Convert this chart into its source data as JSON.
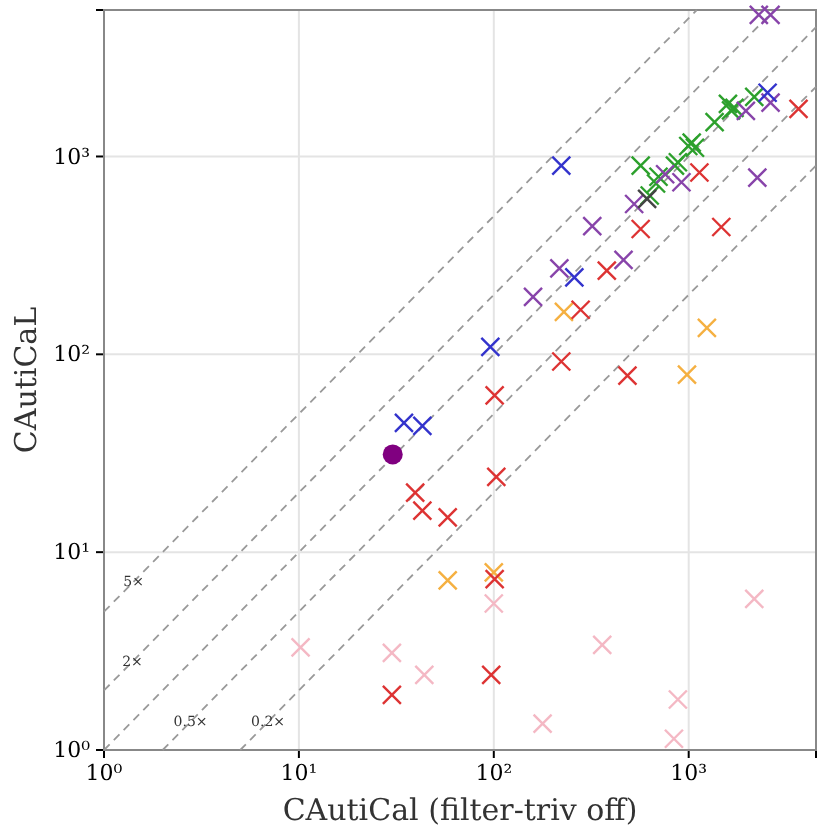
{
  "chart_data": {
    "type": "scatter",
    "xlabel": "CAutiCal (filter-triv off)",
    "ylabel": "CAutiCaL",
    "log": "xy",
    "grid": true,
    "marker": "cross",
    "xlim": [
      1,
      4500
    ],
    "ylim": [
      1,
      5500
    ],
    "xticks": [
      {
        "value": 1,
        "label": "10⁰"
      },
      {
        "value": 10,
        "label": "10¹"
      },
      {
        "value": 100,
        "label": "10²"
      },
      {
        "value": 1000,
        "label": "10³"
      }
    ],
    "yticks": [
      {
        "value": 1,
        "label": "10⁰"
      },
      {
        "value": 10,
        "label": "10¹"
      },
      {
        "value": 100,
        "label": "10²"
      },
      {
        "value": 1000,
        "label": "10³"
      }
    ],
    "series": [
      {
        "type": "line",
        "color": "#999999",
        "line_style": "dashed",
        "marker": "none",
        "x": [
          1,
          1100
        ],
        "values": [
          5,
          5500
        ]
      },
      {
        "type": "line",
        "color": "#999999",
        "line_style": "dashed",
        "marker": "none",
        "x": [
          1,
          2750
        ],
        "values": [
          2,
          5500
        ]
      },
      {
        "type": "line",
        "color": "#999999",
        "line_style": "dashed",
        "marker": "none",
        "x": [
          1,
          4500
        ],
        "values": [
          1,
          4500
        ]
      },
      {
        "type": "line",
        "color": "#999999",
        "line_style": "dashed",
        "marker": "none",
        "x": [
          2,
          4500
        ],
        "values": [
          1,
          2250
        ]
      },
      {
        "type": "line",
        "color": "#999999",
        "line_style": "dashed",
        "marker": "none",
        "x": [
          5,
          4500
        ],
        "values": [
          1,
          900
        ]
      },
      {
        "color": "#f4b8c4",
        "x": [
          10.2,
          30,
          44,
          100,
          360,
          2170,
          880,
          178,
          840
        ],
        "values": [
          3.3,
          3.1,
          2.4,
          5.5,
          3.4,
          5.8,
          1.8,
          1.36,
          1.14
        ]
      },
      {
        "color": "#f5b041",
        "x": [
          229,
          1240,
          980,
          58,
          100
        ],
        "values": [
          164,
          136,
          79,
          7.2,
          7.9
        ]
      },
      {
        "color": "#dd3333",
        "x": [
          3660,
          1135,
          1470,
          567,
          380,
          279,
          222,
          485,
          101,
          103,
          39.5,
          43,
          58,
          101,
          97,
          30
        ],
        "values": [
          1740,
          830,
          440,
          430,
          265,
          168,
          92,
          78,
          62,
          24,
          20,
          16.2,
          15,
          7.3,
          2.4,
          1.9
        ]
      },
      {
        "color": "#2ca02c",
        "x": [
          567,
          700,
          680,
          850,
          880,
          995,
          1077,
          1036,
          631,
          1358,
          1590,
          1718,
          1650,
          2170
        ],
        "values": [
          900,
          790,
          730,
          900,
          935,
          1130,
          1107,
          1176,
          635,
          1490,
          1845,
          1760,
          1710,
          2000
        ]
      },
      {
        "color": "#8844aa",
        "x": [
          2290,
          2630,
          2630,
          1965,
          2250,
          918,
          757,
          525,
          320,
          463,
          217,
          159
        ],
        "values": [
          5200,
          5200,
          1870,
          1700,
          782,
          741,
          813,
          575,
          445,
          300,
          272,
          195
        ]
      },
      {
        "color": "#3333cc",
        "x": [
          222,
          96,
          259,
          2540,
          34.6,
          43
        ],
        "values": [
          900,
          109,
          245,
          2100,
          45,
          43.5
        ]
      },
      {
        "color": "#444444",
        "x": [
          612
        ],
        "values": [
          611
        ]
      },
      {
        "color": "#800080",
        "marker": "circle",
        "x": [
          30.3
        ],
        "values": [
          31.2
        ]
      }
    ],
    "annotations": [
      {
        "text": "5×",
        "x": 1.42,
        "y": 7.1
      },
      {
        "text": "2×",
        "x": 1.4,
        "y": 2.8
      },
      {
        "text": "0.5×",
        "x": 2.78,
        "y": 1.39
      },
      {
        "text": "0.2×",
        "x": 6.95,
        "y": 1.39
      }
    ]
  }
}
